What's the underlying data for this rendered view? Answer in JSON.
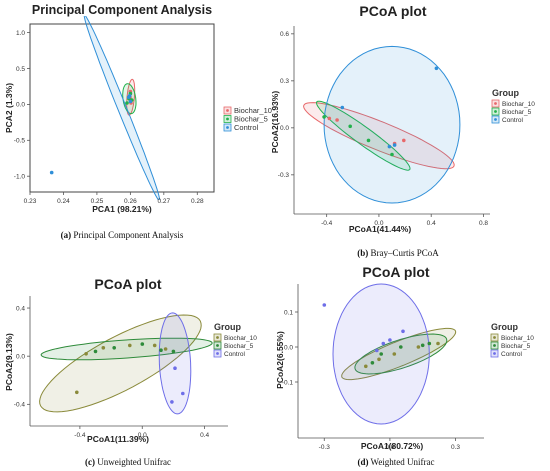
{
  "chart_data": [
    {
      "type": "scatter",
      "caption_letter": "(a)",
      "caption": " Principal Component Analysis",
      "title": "Principal Component Analysis",
      "xlabel": "PCA1 (98.21%)",
      "ylabel": "PCA2 (1.3%)",
      "xlim": [
        0.23,
        0.285
      ],
      "ylim": [
        -1.22,
        1.12
      ],
      "xticks": [
        "0.23",
        "0.24",
        "0.25",
        "0.26",
        "0.27",
        "0.28"
      ],
      "yticks": [
        "-1.0",
        "-0.5",
        "0.0",
        "0.5",
        "1.0"
      ],
      "legend_title": "",
      "legend_position": "right",
      "series": [
        {
          "name": "Biochar_10",
          "color": "#e8686a",
          "points": [
            [
              0.26,
              0.18
            ],
            [
              0.2602,
              0.02
            ],
            [
              0.2599,
              0.1
            ]
          ],
          "ellipse": {
            "cx": 0.2601,
            "cy": 0.1,
            "rx": 0.0011,
            "ry": 0.25,
            "angle_deg": -5
          }
        },
        {
          "name": "Biochar_5",
          "color": "#22b14c",
          "points": [
            [
              0.2596,
              0.08
            ],
            [
              0.259,
              0.02
            ],
            [
              0.26,
              0.15
            ],
            [
              0.2604,
              0.06
            ]
          ],
          "ellipse": {
            "cx": 0.2597,
            "cy": 0.08,
            "rx": 0.0019,
            "ry": 0.21,
            "angle_deg": 8
          }
        },
        {
          "name": "Control",
          "color": "#2f8fd8",
          "points": [
            [
              0.2365,
              -0.95
            ],
            [
              0.2595,
              0.1
            ],
            [
              0.26,
              0.04
            ],
            [
              0.2598,
              0.12
            ]
          ],
          "ellipse": {
            "cx": 0.2575,
            "cy": -0.05,
            "rx": 0.03,
            "ry": 0.06,
            "angle_deg": -68
          }
        }
      ]
    },
    {
      "type": "scatter",
      "caption_letter": "(b)",
      "caption": " Bray–Curtis PCoA",
      "title": "PCoA plot",
      "xlabel": "PCoA1(41.44%)",
      "ylabel": "PCoA2(16.93%)",
      "xlim": [
        -0.65,
        0.85
      ],
      "ylim": [
        -0.55,
        0.65
      ],
      "xticks": [
        "-0.4",
        "0.0",
        "0.4",
        "0.8"
      ],
      "yticks": [
        "-0.3",
        "0.0",
        "0.3",
        "0.6"
      ],
      "legend_title": "Group",
      "legend_position": "right",
      "series": [
        {
          "name": "Biochar_10",
          "color": "#e8686a",
          "points": [
            [
              -0.38,
              0.06
            ],
            [
              -0.32,
              0.05
            ],
            [
              0.12,
              -0.1
            ],
            [
              0.19,
              -0.08
            ]
          ],
          "ellipse": {
            "cx": 0.0,
            "cy": -0.05,
            "rx": 0.62,
            "ry": 0.09,
            "angle_deg": -22
          }
        },
        {
          "name": "Biochar_5",
          "color": "#22b14c",
          "points": [
            [
              -0.42,
              0.07
            ],
            [
              -0.22,
              0.01
            ],
            [
              -0.08,
              -0.08
            ],
            [
              0.1,
              -0.17
            ]
          ],
          "ellipse": {
            "cx": -0.12,
            "cy": -0.05,
            "rx": 0.44,
            "ry": 0.055,
            "angle_deg": -36
          }
        },
        {
          "name": "Control",
          "color": "#2f8fd8",
          "points": [
            [
              -0.28,
              0.13
            ],
            [
              0.08,
              -0.12
            ],
            [
              0.12,
              -0.11
            ],
            [
              0.44,
              0.38
            ]
          ],
          "ellipse": {
            "cx": 0.1,
            "cy": 0.02,
            "rx": 0.52,
            "ry": 0.5,
            "angle_deg": 0
          }
        }
      ]
    },
    {
      "type": "scatter",
      "caption_letter": "(c)",
      "caption": " Unweighted Unifrac",
      "title": "PCoA plot",
      "xlabel": "PCoA1(11.39%)",
      "ylabel": "PCoA2(9.13%)",
      "xlim": [
        -0.72,
        0.55
      ],
      "ylim": [
        -0.58,
        0.5
      ],
      "xticks": [
        "-0.4",
        "0.0",
        "0.4"
      ],
      "yticks": [
        "-0.4",
        "0.0",
        "0.4"
      ],
      "legend_title": "Group",
      "legend_position": "right",
      "series": [
        {
          "name": "Biochar_10",
          "color": "#8a8a3a",
          "points": [
            [
              -0.42,
              -0.3
            ],
            [
              -0.36,
              0.02
            ],
            [
              -0.25,
              0.07
            ],
            [
              -0.08,
              0.09
            ],
            [
              0.08,
              0.09
            ],
            [
              0.15,
              0.06
            ]
          ],
          "ellipse": {
            "cx": -0.14,
            "cy": -0.06,
            "rx": 0.58,
            "ry": 0.22,
            "angle_deg": 28
          }
        },
        {
          "name": "Biochar_5",
          "color": "#2e8b3a",
          "points": [
            [
              -0.3,
              0.04
            ],
            [
              -0.18,
              0.07
            ],
            [
              0.0,
              0.1
            ],
            [
              0.12,
              0.05
            ],
            [
              0.2,
              0.04
            ]
          ],
          "ellipse": {
            "cx": -0.1,
            "cy": 0.06,
            "rx": 0.55,
            "ry": 0.075,
            "angle_deg": 4
          }
        },
        {
          "name": "Control",
          "color": "#6e6ee8",
          "points": [
            [
              0.21,
              -0.1
            ],
            [
              0.19,
              -0.38
            ],
            [
              0.26,
              -0.31
            ]
          ],
          "ellipse": {
            "cx": 0.21,
            "cy": -0.06,
            "rx": 0.1,
            "ry": 0.42,
            "angle_deg": 3
          }
        }
      ]
    },
    {
      "type": "scatter",
      "caption_letter": "(d)",
      "caption": " Weighted Unifrac",
      "title": "PCoA plot",
      "xlabel": "PCoA1(80.72%)",
      "ylabel": "PCoA2(6.55%)",
      "xlim": [
        -0.42,
        0.43
      ],
      "ylim": [
        -0.26,
        0.18
      ],
      "xticks": [
        "-0.3",
        "0.0",
        "0.3"
      ],
      "yticks": [
        "-0.1",
        "0.0",
        "0.1"
      ],
      "legend_title": "Group",
      "legend_position": "right",
      "series": [
        {
          "name": "Biochar_10",
          "color": "#8a8a3a",
          "points": [
            [
              -0.11,
              -0.055
            ],
            [
              -0.05,
              -0.035
            ],
            [
              0.02,
              -0.02
            ],
            [
              0.13,
              0.0
            ],
            [
              0.22,
              0.01
            ]
          ],
          "ellipse": {
            "cx": 0.04,
            "cy": -0.02,
            "rx": 0.28,
            "ry": 0.035,
            "angle_deg": 22
          }
        },
        {
          "name": "Biochar_5",
          "color": "#2e8b3a",
          "points": [
            [
              -0.08,
              -0.045
            ],
            [
              -0.04,
              -0.02
            ],
            [
              0.05,
              0.0
            ],
            [
              0.15,
              0.005
            ],
            [
              0.18,
              0.01
            ]
          ],
          "ellipse": {
            "cx": 0.05,
            "cy": -0.02,
            "rx": 0.22,
            "ry": 0.04,
            "angle_deg": 18
          }
        },
        {
          "name": "Control",
          "color": "#6e6ee8",
          "points": [
            [
              -0.3,
              0.12
            ],
            [
              -0.06,
              -0.01
            ],
            [
              -0.03,
              0.01
            ],
            [
              0.0,
              0.02
            ],
            [
              0.06,
              0.045
            ]
          ],
          "ellipse": {
            "cx": -0.04,
            "cy": -0.02,
            "rx": 0.22,
            "ry": 0.2,
            "angle_deg": 0
          }
        }
      ]
    }
  ]
}
